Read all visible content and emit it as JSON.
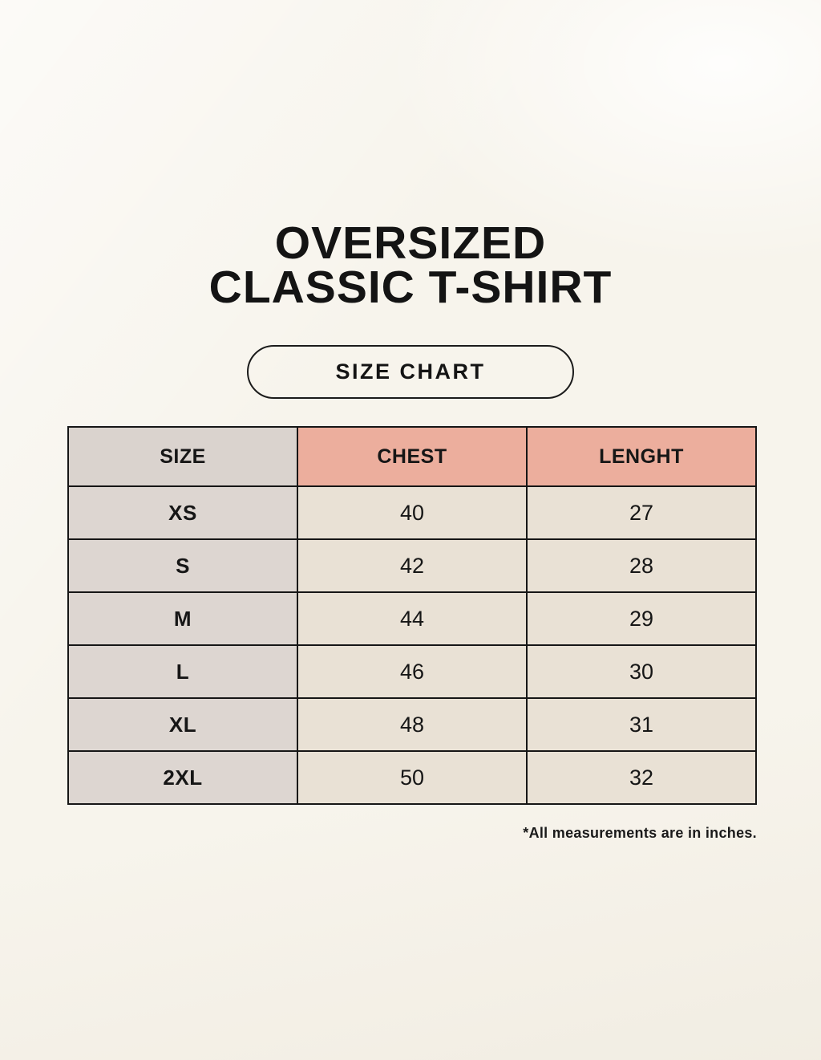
{
  "header": {
    "title_line1": "OVERSIZED",
    "title_line2": "CLASSIC T-SHIRT",
    "size_chart_label": "SIZE CHART"
  },
  "chart_data": {
    "type": "table",
    "title": "OVERSIZED CLASSIC T-SHIRT",
    "subtitle": "SIZE CHART",
    "columns": [
      "SIZE",
      "CHEST",
      "LENGHT"
    ],
    "rows": [
      [
        "XS",
        "40",
        "27"
      ],
      [
        "S",
        "42",
        "28"
      ],
      [
        "M",
        "44",
        "29"
      ],
      [
        "L",
        "46",
        "30"
      ],
      [
        "XL",
        "48",
        "31"
      ],
      [
        "2XL",
        "50",
        "32"
      ]
    ],
    "footnote": "*All measurements are in inches.",
    "units": "inches"
  },
  "colors": {
    "background": "#f7f4ec",
    "header_pink": "#ecae9d",
    "header_gray": "#dad3ce",
    "label_gray": "#ddd6d1",
    "cell_cream": "#e9e1d5",
    "border": "#161616",
    "text": "#141414"
  }
}
